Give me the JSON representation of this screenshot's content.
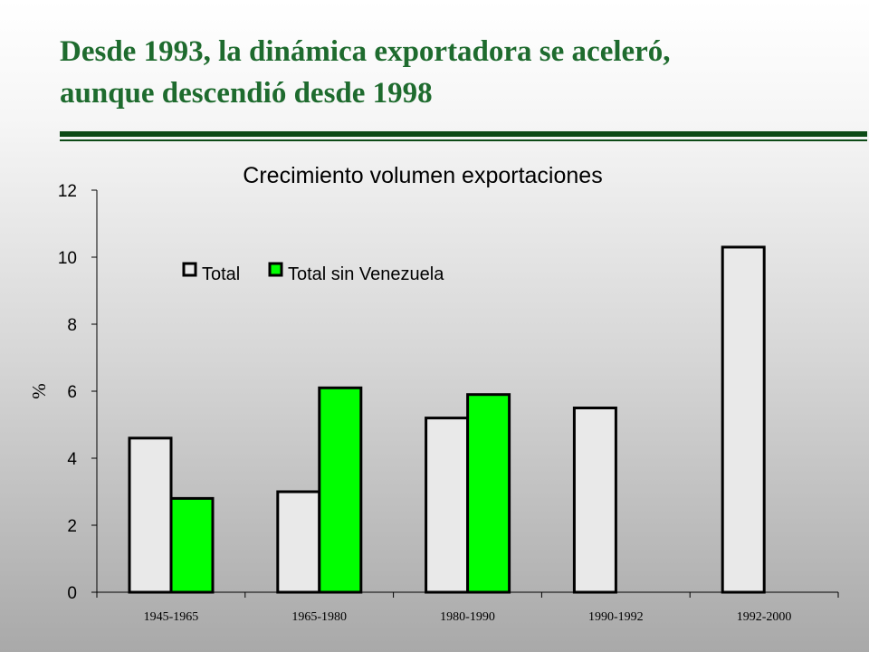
{
  "slide": {
    "title_line1": "Desde 1993, la dinámica exportadora se aceleró,",
    "title_line2": "aunque descendió desde 1998"
  },
  "chart_data": {
    "type": "bar",
    "title": "Crecimiento volumen exportaciones",
    "xlabel": "",
    "ylabel": "%",
    "ylim": [
      0,
      12
    ],
    "yticks": [
      0,
      2,
      4,
      6,
      8,
      10,
      12
    ],
    "categories": [
      "1945-1965",
      "1965-1980",
      "1980-1990",
      "1990-1992",
      "1992-2000"
    ],
    "series": [
      {
        "name": "Total",
        "color": "#e9e9e9",
        "values": [
          4.6,
          3.0,
          5.2,
          5.5,
          10.3
        ]
      },
      {
        "name": "Total sin  Venezuela",
        "color": "#00ff00",
        "values": [
          2.8,
          6.1,
          5.9,
          null,
          null
        ]
      }
    ],
    "legend_position": "top-left",
    "grid": false
  }
}
